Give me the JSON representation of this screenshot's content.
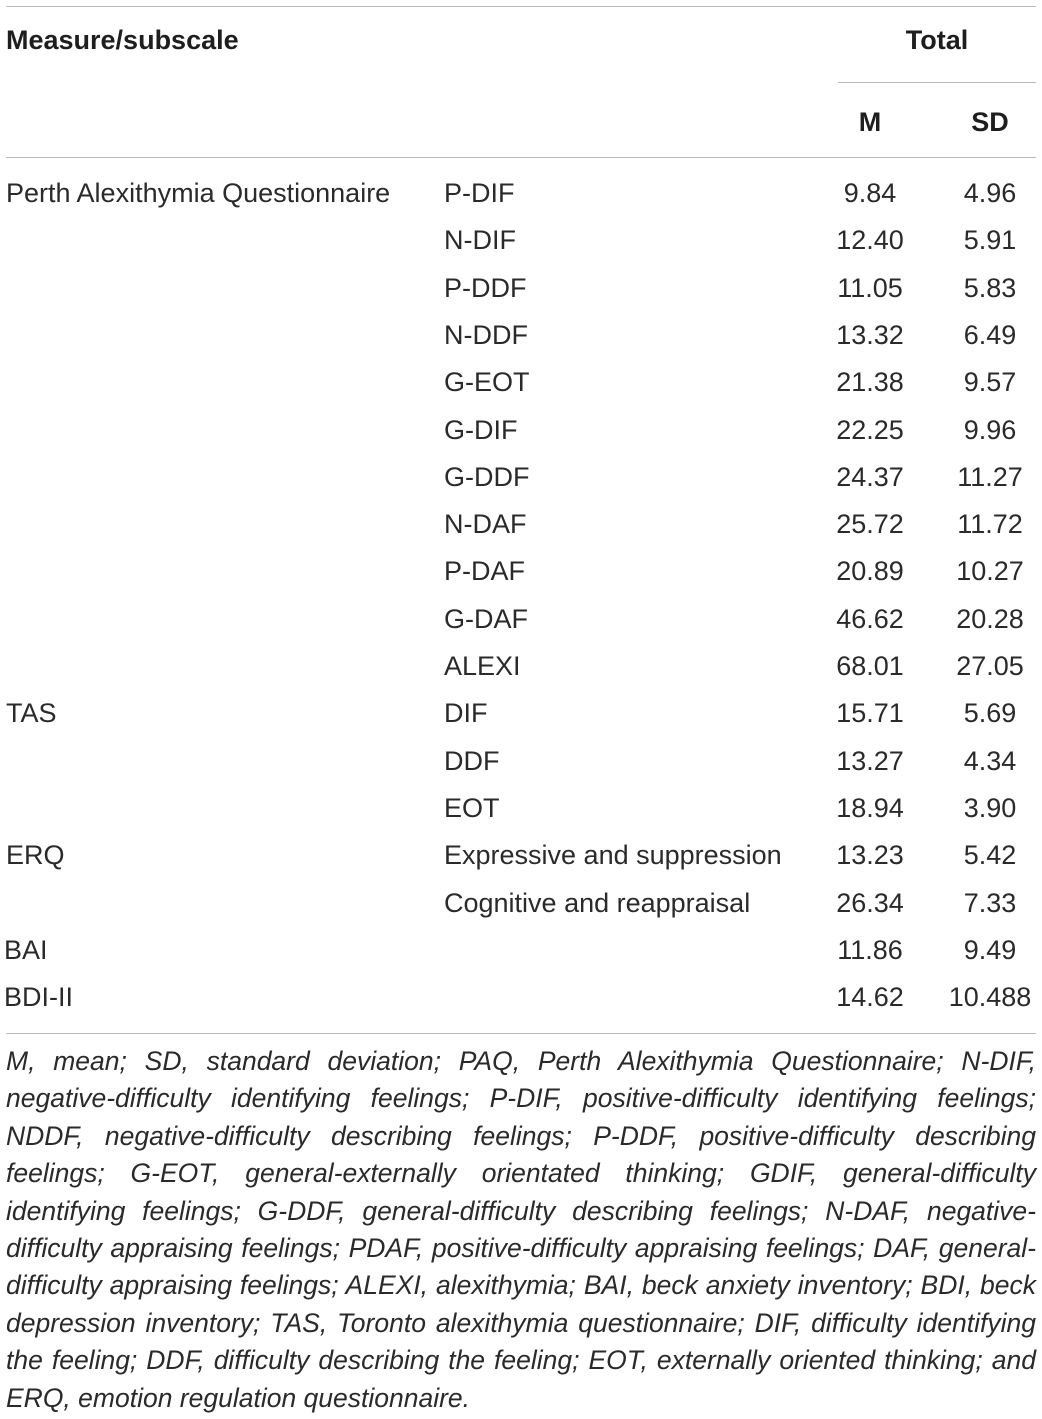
{
  "header": {
    "measure_label": "Measure/subscale",
    "group_label": "Total",
    "col_m": "M",
    "col_sd": "SD"
  },
  "rows": [
    {
      "measure": "Perth Alexithymia Questionnaire",
      "subscale": "P-DIF",
      "m": "9.84",
      "sd": "4.96"
    },
    {
      "measure": "",
      "subscale": "N-DIF",
      "m": "12.40",
      "sd": "5.91"
    },
    {
      "measure": "",
      "subscale": "P-DDF",
      "m": "11.05",
      "sd": "5.83"
    },
    {
      "measure": "",
      "subscale": "N-DDF",
      "m": "13.32",
      "sd": "6.49"
    },
    {
      "measure": "",
      "subscale": "G-EOT",
      "m": "21.38",
      "sd": "9.57"
    },
    {
      "measure": "",
      "subscale": "G-DIF",
      "m": "22.25",
      "sd": "9.96"
    },
    {
      "measure": "",
      "subscale": "G-DDF",
      "m": "24.37",
      "sd": "11.27"
    },
    {
      "measure": "",
      "subscale": "N-DAF",
      "m": "25.72",
      "sd": "11.72"
    },
    {
      "measure": "",
      "subscale": "P-DAF",
      "m": "20.89",
      "sd": "10.27"
    },
    {
      "measure": "",
      "subscale": "G-DAF",
      "m": "46.62",
      "sd": "20.28"
    },
    {
      "measure": "",
      "subscale": "ALEXI",
      "m": "68.01",
      "sd": "27.05"
    },
    {
      "measure": "TAS",
      "subscale": "DIF",
      "m": "15.71",
      "sd": "5.69"
    },
    {
      "measure": "",
      "subscale": "DDF",
      "m": "13.27",
      "sd": "4.34"
    },
    {
      "measure": "",
      "subscale": "EOT",
      "m": "18.94",
      "sd": "3.90"
    },
    {
      "measure": "ERQ",
      "subscale": "Expressive and suppression",
      "m": "13.23",
      "sd": "5.42"
    },
    {
      "measure": "",
      "subscale": "Cognitive and reappraisal",
      "m": "26.34",
      "sd": "7.33"
    },
    {
      "measure": "BAI",
      "subscale": "",
      "m": "11.86",
      "sd": "9.49"
    },
    {
      "measure": "BDI-II",
      "subscale": "",
      "m": "14.62",
      "sd": "10.488"
    }
  ],
  "footnote": "M, mean; SD, standard deviation; PAQ, Perth Alexithymia Questionnaire; N-DIF, negative-difficulty identifying feelings; P-DIF, positive-difficulty identifying feelings; NDDF, negative-difficulty describing feelings; P-DDF, positive-difficulty describing feelings; G-EOT, general-externally orientated thinking; GDIF, general-difficulty identifying feelings; G-DDF, general-difficulty describing feelings; N-DAF, negative-difficulty appraising feelings; PDAF, positive-difficulty appraising feelings; DAF, general-difficulty appraising feelings; ALEXI, alexithymia; BAI, beck anxiety inventory; BDI, beck depression inventory; TAS, Toronto alexithymia questionnaire; DIF, difficulty identifying the feeling; DDF, difficulty describing the feeling; EOT, externally oriented thinking; and ERQ, emotion regulation questionnaire."
}
